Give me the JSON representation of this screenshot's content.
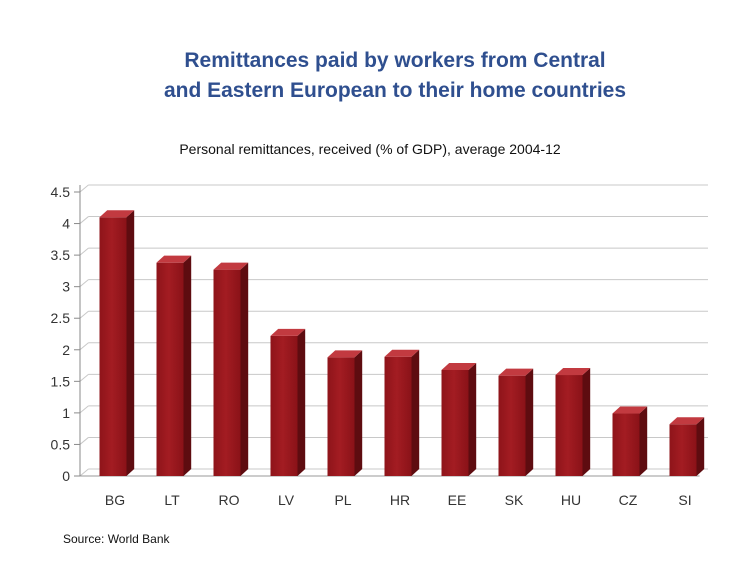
{
  "chart_data": {
    "type": "bar",
    "title": "Remittances paid by workers from Central and Eastern European to their home countries",
    "title_lines": [
      "Remittances paid by workers from Central",
      "and Eastern European to their home countries"
    ],
    "subtitle": "Personal remittances, received (% of GDP), average 2004-12",
    "categories": [
      "BG",
      "LT",
      "RO",
      "LV",
      "PL",
      "HR",
      "EE",
      "SK",
      "HU",
      "CZ",
      "SI"
    ],
    "values": [
      4.1,
      3.38,
      3.27,
      2.22,
      1.88,
      1.89,
      1.68,
      1.59,
      1.6,
      0.99,
      0.82
    ],
    "ylim": [
      0,
      4.5
    ],
    "yticks": [
      "0",
      "0.5",
      "1",
      "1.5",
      "2",
      "2.5",
      "3",
      "3.5",
      "4",
      "4.5"
    ],
    "xlabel": "",
    "ylabel": "",
    "grid": true,
    "bar_color": "#a31c22",
    "source": "Source: World Bank"
  }
}
